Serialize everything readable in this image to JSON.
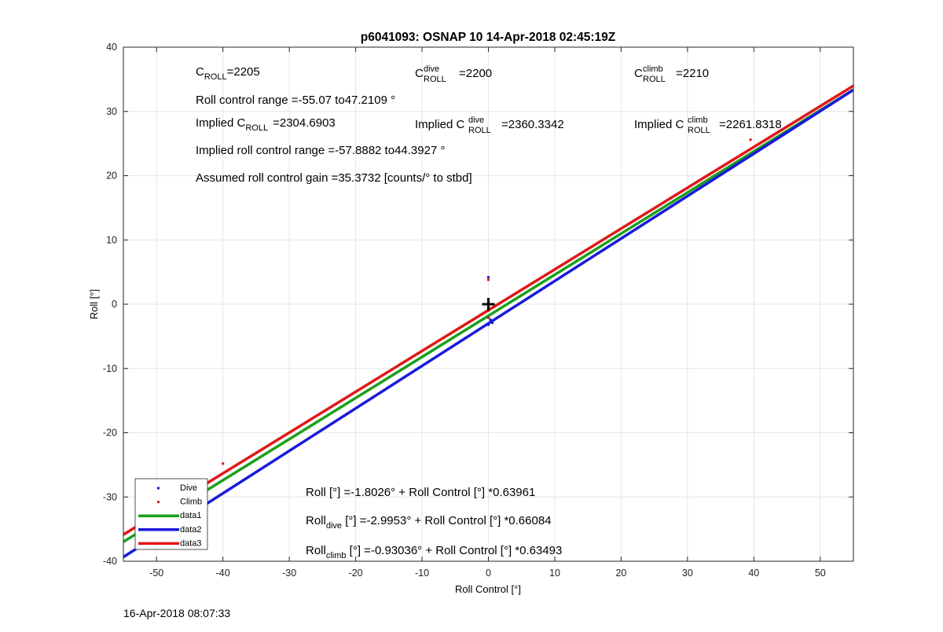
{
  "chart_data": {
    "type": "scatter",
    "title": "p6041093: OSNAP 10 14-Apr-2018 02:45:19Z",
    "xlabel": "Roll Control [°]",
    "ylabel": "Roll [°]",
    "xlim": [
      -55,
      55
    ],
    "ylim": [
      -40,
      40
    ],
    "xticks": [
      -50,
      -40,
      -30,
      -20,
      -10,
      0,
      10,
      20,
      30,
      40,
      50
    ],
    "yticks": [
      -40,
      -30,
      -20,
      -10,
      0,
      10,
      20,
      30,
      40
    ],
    "grid": true,
    "legend_position": "bottom-left",
    "series": [
      {
        "name": "Dive",
        "kind": "points",
        "color": "#1a1adc",
        "points": [
          [
            0,
            4.2
          ],
          [
            0,
            -3.2
          ],
          [
            0.3,
            -2.4
          ],
          [
            0.6,
            -2.9
          ]
        ]
      },
      {
        "name": "Climb",
        "kind": "points",
        "color": "#e01818",
        "points": [
          [
            -40,
            -24.8
          ],
          [
            39.5,
            25.6
          ],
          [
            0,
            3.8
          ],
          [
            0,
            -1.0
          ],
          [
            0,
            -2.1
          ]
        ]
      },
      {
        "name": "data1",
        "kind": "line",
        "color": "#1aa01a",
        "intercept": -1.8026,
        "slope": 0.63961
      },
      {
        "name": "data2",
        "kind": "line",
        "color": "#1a1adc",
        "intercept": -2.9953,
        "slope": 0.66084
      },
      {
        "name": "data3",
        "kind": "line",
        "color": "#e01818",
        "intercept": -0.93036,
        "slope": 0.63493
      }
    ],
    "marker": {
      "x": 0,
      "y": 0,
      "symbol": "+"
    },
    "annotations": {
      "c_roll": {
        "base": "C",
        "sub": "ROLL",
        "value": "=2205"
      },
      "c_dive": {
        "base": "C",
        "sup": "dive",
        "sub": "ROLL",
        "value": "=2200"
      },
      "c_climb": {
        "base": "C",
        "sup": "climb",
        "sub": "ROLL",
        "value": "=2210"
      },
      "roll_range": "Roll control range =-55.07 to47.2109 °",
      "implied_c_roll": {
        "prefix": "Implied C",
        "sub": "ROLL",
        "value": "=2304.6903"
      },
      "implied_c_dive": {
        "prefix": "Implied C",
        "sup": "dive",
        "sub": "ROLL",
        "value": "=2360.3342"
      },
      "implied_c_climb": {
        "prefix": "Implied C",
        "sup": "climb",
        "sub": "ROLL",
        "value": "=2261.8318"
      },
      "implied_range": "Implied roll control range =-57.8882 to44.3927 °",
      "gain": "Assumed roll control gain =35.3732 [counts/° to stbd]",
      "fit_all": {
        "base": "Roll",
        "rest": " [°] =-1.8026° + Roll Control [°] *0.63961"
      },
      "fit_dive": {
        "base": "Roll",
        "sub": "dive",
        "rest": " [°] =-2.9953° + Roll Control [°] *0.66084"
      },
      "fit_climb": {
        "base": "Roll",
        "sub": "climb",
        "rest": " [°] =-0.93036° + Roll Control [°] *0.63493"
      }
    }
  },
  "footer": {
    "timestamp": "16-Apr-2018 08:07:33"
  }
}
